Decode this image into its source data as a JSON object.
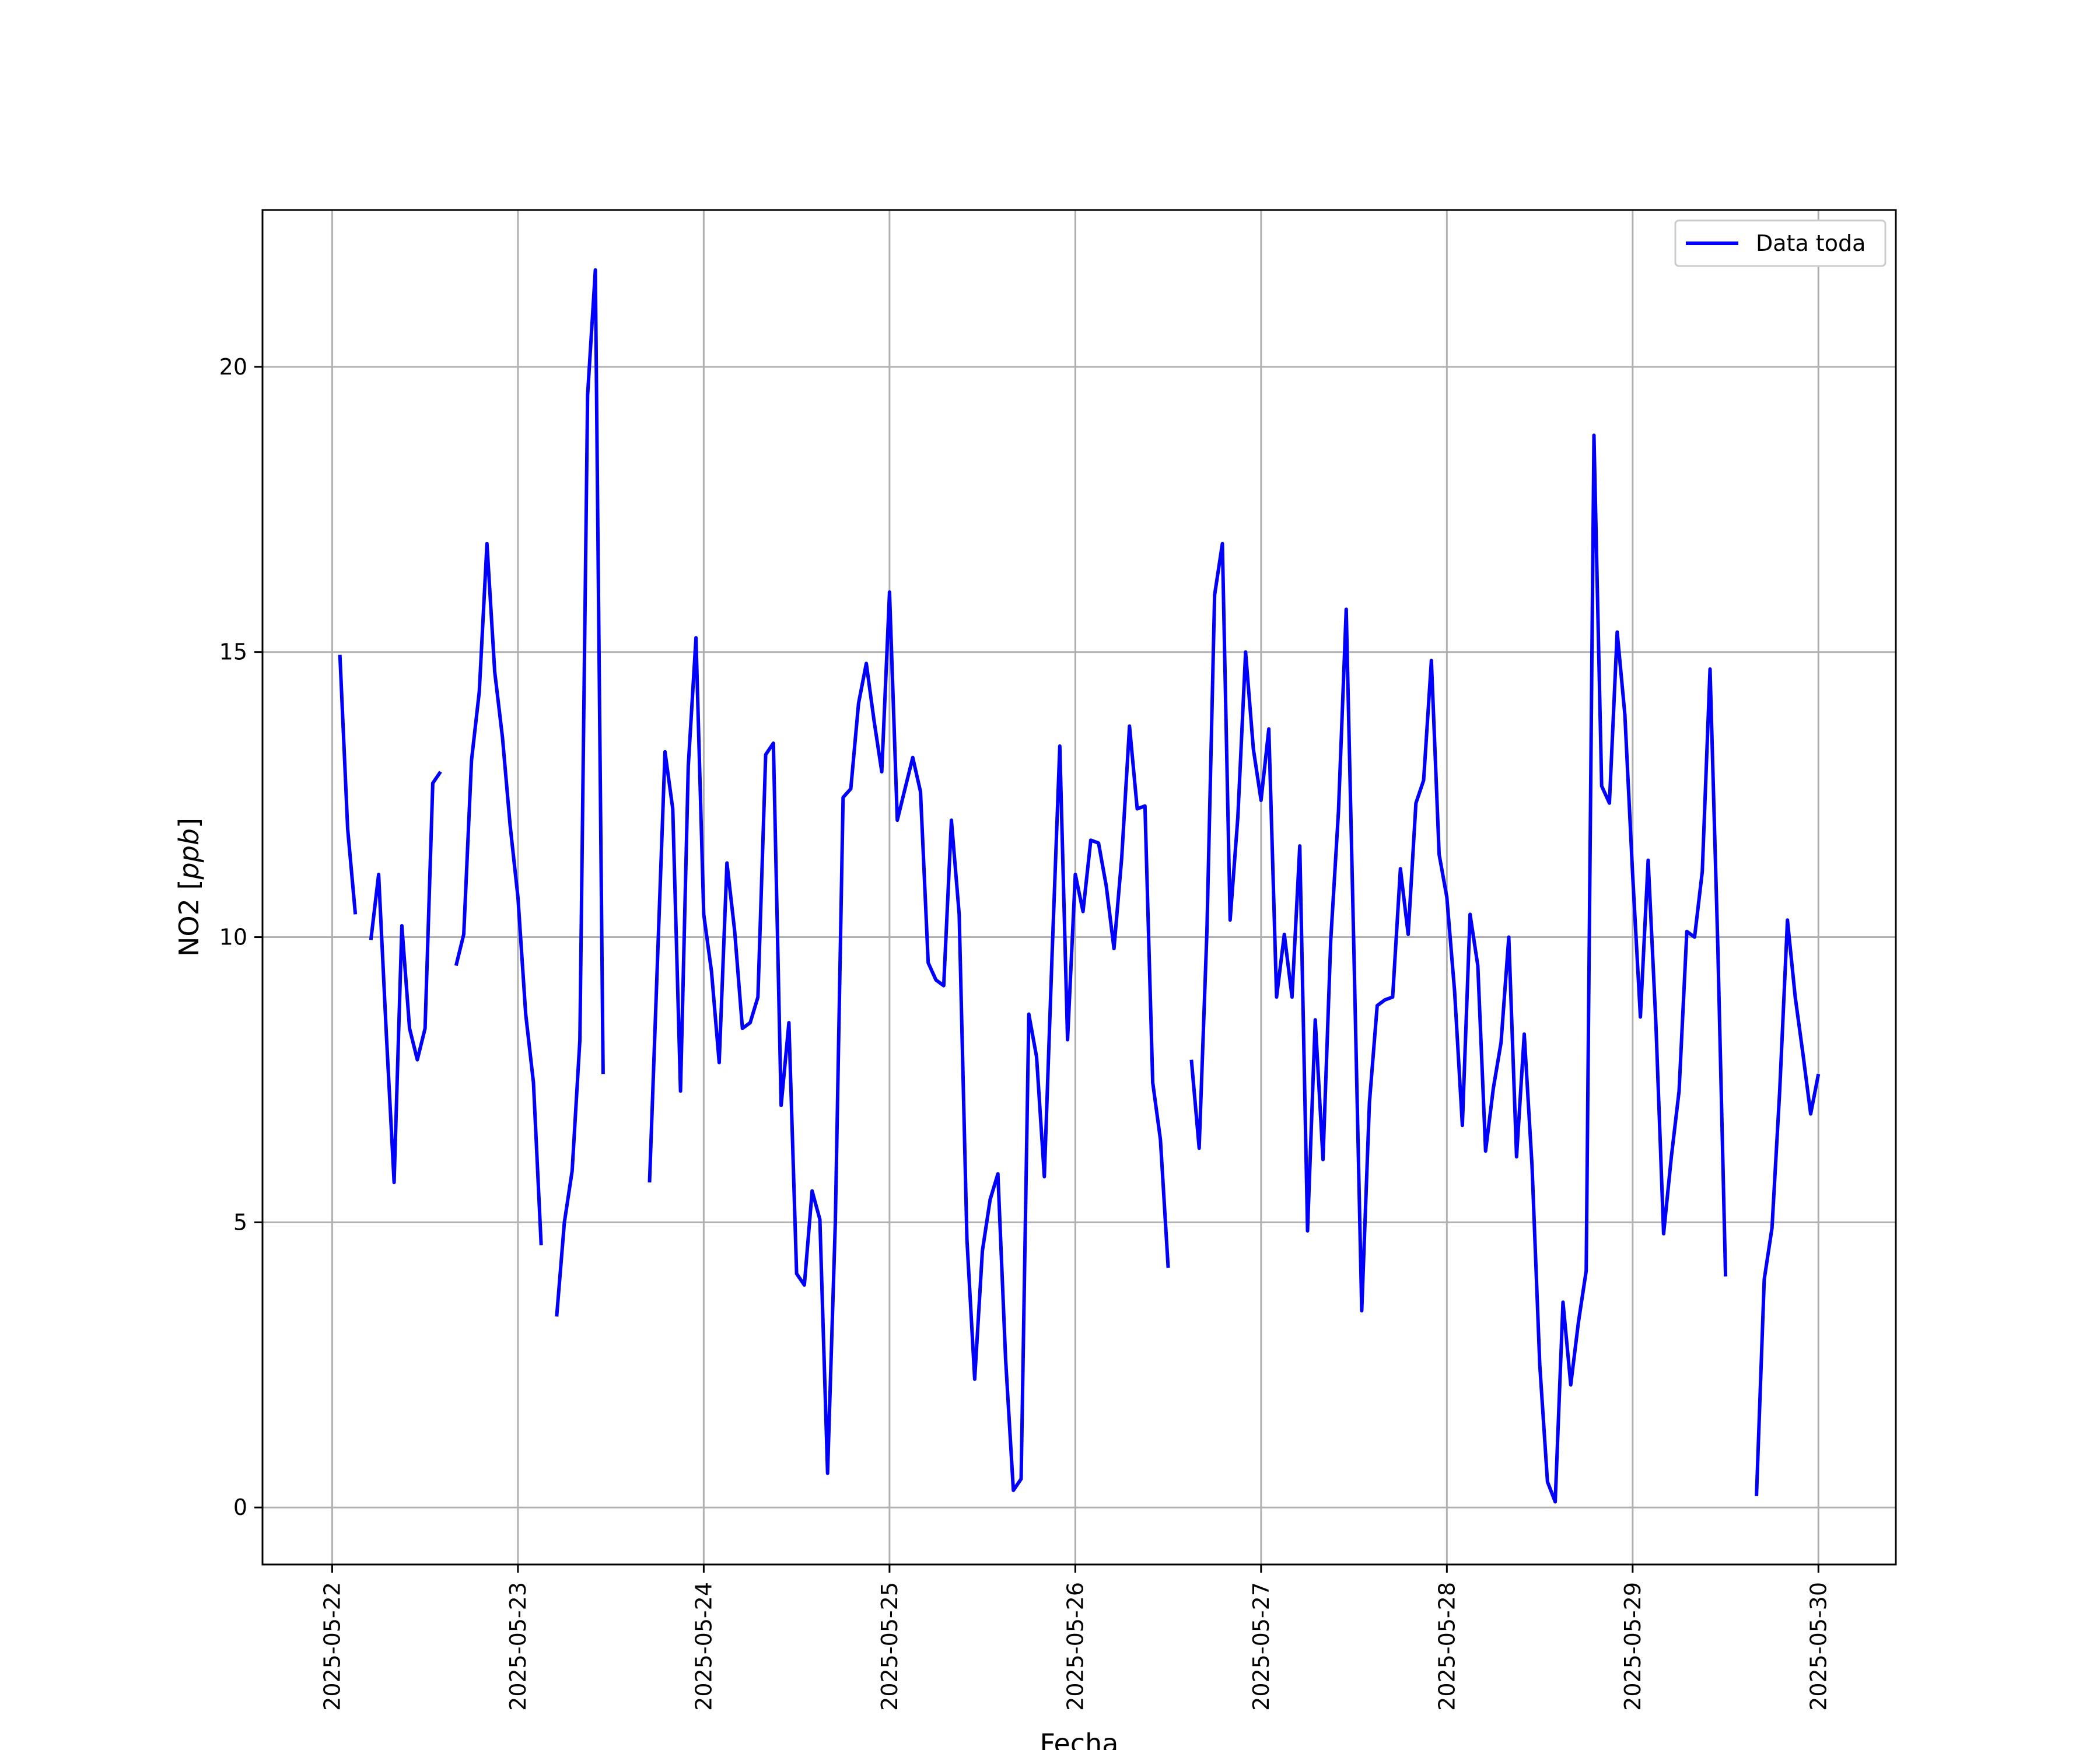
{
  "chart_data": {
    "type": "line",
    "xlabel": "Fecha",
    "ylabel_main": "NO2 [",
    "ylabel_unit": "ppb",
    "ylabel_close": "]",
    "xlim": [
      "2025-05-21T15:00",
      "2025-05-30T10:00"
    ],
    "ylim": [
      -1,
      22.75
    ],
    "x_ticks": [
      "2025-05-22",
      "2025-05-23",
      "2025-05-24",
      "2025-05-25",
      "2025-05-26",
      "2025-05-27",
      "2025-05-28",
      "2025-05-29",
      "2025-05-30"
    ],
    "y_ticks": [
      0,
      5,
      10,
      15,
      20
    ],
    "y_tick_labels": [
      "0",
      "5",
      "10",
      "15",
      "20"
    ],
    "grid": true,
    "legend_position": "top-right",
    "series": [
      {
        "name": "Data toda",
        "color": "#0000ff",
        "points": [
          [
            "2025-05-22T01:00",
            14.95
          ],
          [
            "2025-05-22T02:00",
            11.9
          ],
          [
            "2025-05-22T03:00",
            10.4
          ],
          [
            "2025-05-22T04:00",
            null
          ],
          [
            "2025-05-22T05:00",
            9.95
          ],
          [
            "2025-05-22T06:00",
            11.1
          ],
          [
            "2025-05-22T07:00",
            8.3
          ],
          [
            "2025-05-22T08:00",
            5.7
          ],
          [
            "2025-05-22T09:00",
            10.2
          ],
          [
            "2025-05-22T10:00",
            8.4
          ],
          [
            "2025-05-22T11:00",
            7.85
          ],
          [
            "2025-05-22T12:00",
            8.4
          ],
          [
            "2025-05-22T13:00",
            12.7
          ],
          [
            "2025-05-22T14:00",
            12.9
          ],
          [
            "2025-05-22T15:00",
            null
          ],
          [
            "2025-05-22T16:00",
            9.5
          ],
          [
            "2025-05-22T17:00",
            10.05
          ],
          [
            "2025-05-22T18:00",
            13.1
          ],
          [
            "2025-05-22T19:00",
            14.3
          ],
          [
            "2025-05-22T20:00",
            16.9
          ],
          [
            "2025-05-22T21:00",
            14.65
          ],
          [
            "2025-05-22T22:00",
            13.5
          ],
          [
            "2025-05-22T23:00",
            11.95
          ],
          [
            "2025-05-23T00:00",
            10.7
          ],
          [
            "2025-05-23T01:00",
            8.65
          ],
          [
            "2025-05-23T02:00",
            7.45
          ],
          [
            "2025-05-23T03:00",
            4.6
          ],
          [
            "2025-05-23T04:00",
            null
          ],
          [
            "2025-05-23T05:00",
            3.35
          ],
          [
            "2025-05-23T06:00",
            5.0
          ],
          [
            "2025-05-23T07:00",
            5.9
          ],
          [
            "2025-05-23T08:00",
            8.2
          ],
          [
            "2025-05-23T09:00",
            19.5
          ],
          [
            "2025-05-23T10:00",
            21.7
          ],
          [
            "2025-05-23T11:00",
            7.6
          ],
          [
            "2025-05-23T12:00",
            null
          ],
          [
            "2025-05-23T17:00",
            5.7
          ],
          [
            "2025-05-23T18:00",
            9.5
          ],
          [
            "2025-05-23T19:00",
            13.25
          ],
          [
            "2025-05-23T20:00",
            12.25
          ],
          [
            "2025-05-23T21:00",
            7.3
          ],
          [
            "2025-05-23T22:00",
            13.0
          ],
          [
            "2025-05-23T23:00",
            15.25
          ],
          [
            "2025-05-24T00:00",
            10.4
          ],
          [
            "2025-05-24T01:00",
            9.4
          ],
          [
            "2025-05-24T02:00",
            7.8
          ],
          [
            "2025-05-24T03:00",
            11.3
          ],
          [
            "2025-05-24T04:00",
            10.1
          ],
          [
            "2025-05-24T05:00",
            8.4
          ],
          [
            "2025-05-24T06:00",
            8.5
          ],
          [
            "2025-05-24T07:00",
            8.95
          ],
          [
            "2025-05-24T08:00",
            13.2
          ],
          [
            "2025-05-24T09:00",
            13.4
          ],
          [
            "2025-05-24T10:00",
            7.05
          ],
          [
            "2025-05-24T11:00",
            8.5
          ],
          [
            "2025-05-24T12:00",
            4.1
          ],
          [
            "2025-05-24T13:00",
            3.9
          ],
          [
            "2025-05-24T14:00",
            5.55
          ],
          [
            "2025-05-24T15:00",
            5.05
          ],
          [
            "2025-05-24T16:00",
            0.6
          ],
          [
            "2025-05-24T17:00",
            5.0
          ],
          [
            "2025-05-24T18:00",
            12.45
          ],
          [
            "2025-05-24T19:00",
            12.6
          ],
          [
            "2025-05-24T20:00",
            14.1
          ],
          [
            "2025-05-24T21:00",
            14.8
          ],
          [
            "2025-05-24T22:00",
            13.8
          ],
          [
            "2025-05-24T23:00",
            12.9
          ],
          [
            "2025-05-25T00:00",
            16.05
          ],
          [
            "2025-05-25T01:00",
            12.05
          ],
          [
            "2025-05-25T02:00",
            12.6
          ],
          [
            "2025-05-25T03:00",
            13.15
          ],
          [
            "2025-05-25T04:00",
            12.55
          ],
          [
            "2025-05-25T05:00",
            9.55
          ],
          [
            "2025-05-25T06:00",
            9.25
          ],
          [
            "2025-05-25T07:00",
            9.15
          ],
          [
            "2025-05-25T08:00",
            12.05
          ],
          [
            "2025-05-25T09:00",
            10.4
          ],
          [
            "2025-05-25T10:00",
            4.7
          ],
          [
            "2025-05-25T11:00",
            2.25
          ],
          [
            "2025-05-25T12:00",
            4.5
          ],
          [
            "2025-05-25T13:00",
            5.4
          ],
          [
            "2025-05-25T14:00",
            5.85
          ],
          [
            "2025-05-25T15:00",
            2.6
          ],
          [
            "2025-05-25T16:00",
            0.3
          ],
          [
            "2025-05-25T17:00",
            0.5
          ],
          [
            "2025-05-25T18:00",
            8.65
          ],
          [
            "2025-05-25T19:00",
            7.9
          ],
          [
            "2025-05-25T20:00",
            5.8
          ],
          [
            "2025-05-25T21:00",
            9.7
          ],
          [
            "2025-05-25T22:00",
            13.35
          ],
          [
            "2025-05-25T23:00",
            8.2
          ],
          [
            "2025-05-26T00:00",
            11.1
          ],
          [
            "2025-05-26T01:00",
            10.45
          ],
          [
            "2025-05-26T02:00",
            11.7
          ],
          [
            "2025-05-26T03:00",
            11.65
          ],
          [
            "2025-05-26T04:00",
            10.9
          ],
          [
            "2025-05-26T05:00",
            9.8
          ],
          [
            "2025-05-26T06:00",
            11.4
          ],
          [
            "2025-05-26T07:00",
            13.7
          ],
          [
            "2025-05-26T08:00",
            12.25
          ],
          [
            "2025-05-26T09:00",
            12.3
          ],
          [
            "2025-05-26T10:00",
            7.45
          ],
          [
            "2025-05-26T11:00",
            6.45
          ],
          [
            "2025-05-26T12:00",
            4.2
          ],
          [
            "2025-05-26T13:00",
            null
          ],
          [
            "2025-05-26T15:00",
            7.85
          ],
          [
            "2025-05-26T16:00",
            6.3
          ],
          [
            "2025-05-26T17:00",
            10.1
          ],
          [
            "2025-05-26T18:00",
            16.0
          ],
          [
            "2025-05-26T19:00",
            16.9
          ],
          [
            "2025-05-26T20:00",
            10.3
          ],
          [
            "2025-05-26T21:00",
            12.1
          ],
          [
            "2025-05-26T22:00",
            15.0
          ],
          [
            "2025-05-26T23:00",
            13.3
          ],
          [
            "2025-05-27T00:00",
            12.4
          ],
          [
            "2025-05-27T01:00",
            13.65
          ],
          [
            "2025-05-27T02:00",
            8.95
          ],
          [
            "2025-05-27T03:00",
            10.05
          ],
          [
            "2025-05-27T04:00",
            8.95
          ],
          [
            "2025-05-27T05:00",
            11.6
          ],
          [
            "2025-05-27T06:00",
            4.85
          ],
          [
            "2025-05-27T07:00",
            8.55
          ],
          [
            "2025-05-27T08:00",
            6.1
          ],
          [
            "2025-05-27T09:00",
            9.95
          ],
          [
            "2025-05-27T10:00",
            12.2
          ],
          [
            "2025-05-27T11:00",
            15.75
          ],
          [
            "2025-05-27T12:00",
            9.7
          ],
          [
            "2025-05-27T13:00",
            3.45
          ],
          [
            "2025-05-27T14:00",
            7.1
          ],
          [
            "2025-05-27T15:00",
            8.8
          ],
          [
            "2025-05-27T16:00",
            8.9
          ],
          [
            "2025-05-27T17:00",
            8.95
          ],
          [
            "2025-05-27T18:00",
            11.2
          ],
          [
            "2025-05-27T19:00",
            10.05
          ],
          [
            "2025-05-27T20:00",
            12.35
          ],
          [
            "2025-05-27T21:00",
            12.75
          ],
          [
            "2025-05-27T22:00",
            14.85
          ],
          [
            "2025-05-27T23:00",
            11.45
          ],
          [
            "2025-05-28T00:00",
            10.7
          ],
          [
            "2025-05-28T01:00",
            9.05
          ],
          [
            "2025-05-28T02:00",
            6.7
          ],
          [
            "2025-05-28T03:00",
            10.4
          ],
          [
            "2025-05-28T04:00",
            9.5
          ],
          [
            "2025-05-28T05:00",
            6.25
          ],
          [
            "2025-05-28T06:00",
            7.35
          ],
          [
            "2025-05-28T07:00",
            8.15
          ],
          [
            "2025-05-28T08:00",
            10.0
          ],
          [
            "2025-05-28T09:00",
            6.15
          ],
          [
            "2025-05-28T10:00",
            8.3
          ],
          [
            "2025-05-28T11:00",
            6.0
          ],
          [
            "2025-05-28T12:00",
            2.5
          ],
          [
            "2025-05-28T13:00",
            0.45
          ],
          [
            "2025-05-28T14:00",
            0.1
          ],
          [
            "2025-05-28T15:00",
            3.6
          ],
          [
            "2025-05-28T16:00",
            2.15
          ],
          [
            "2025-05-28T17:00",
            3.25
          ],
          [
            "2025-05-28T18:00",
            4.15
          ],
          [
            "2025-05-28T19:00",
            18.8
          ],
          [
            "2025-05-28T20:00",
            12.65
          ],
          [
            "2025-05-28T21:00",
            12.35
          ],
          [
            "2025-05-28T22:00",
            15.35
          ],
          [
            "2025-05-28T23:00",
            13.9
          ],
          [
            "2025-05-29T00:00",
            11.1
          ],
          [
            "2025-05-29T01:00",
            8.6
          ],
          [
            "2025-05-29T02:00",
            11.35
          ],
          [
            "2025-05-29T03:00",
            8.5
          ],
          [
            "2025-05-29T04:00",
            4.8
          ],
          [
            "2025-05-29T05:00",
            6.15
          ],
          [
            "2025-05-29T06:00",
            7.3
          ],
          [
            "2025-05-29T07:00",
            10.1
          ],
          [
            "2025-05-29T08:00",
            10.0
          ],
          [
            "2025-05-29T09:00",
            11.15
          ],
          [
            "2025-05-29T10:00",
            14.7
          ],
          [
            "2025-05-29T11:00",
            9.85
          ],
          [
            "2025-05-29T12:00",
            4.05
          ],
          [
            "2025-05-29T13:00",
            null
          ],
          [
            "2025-05-29T16:00",
            0.2
          ],
          [
            "2025-05-29T17:00",
            4.0
          ],
          [
            "2025-05-29T18:00",
            4.9
          ],
          [
            "2025-05-29T19:00",
            7.3
          ],
          [
            "2025-05-29T20:00",
            10.3
          ],
          [
            "2025-05-29T21:00",
            8.95
          ],
          [
            "2025-05-29T22:00",
            7.95
          ],
          [
            "2025-05-29T23:00",
            6.9
          ],
          [
            "2025-05-30T00:00",
            7.6
          ]
        ]
      }
    ]
  }
}
